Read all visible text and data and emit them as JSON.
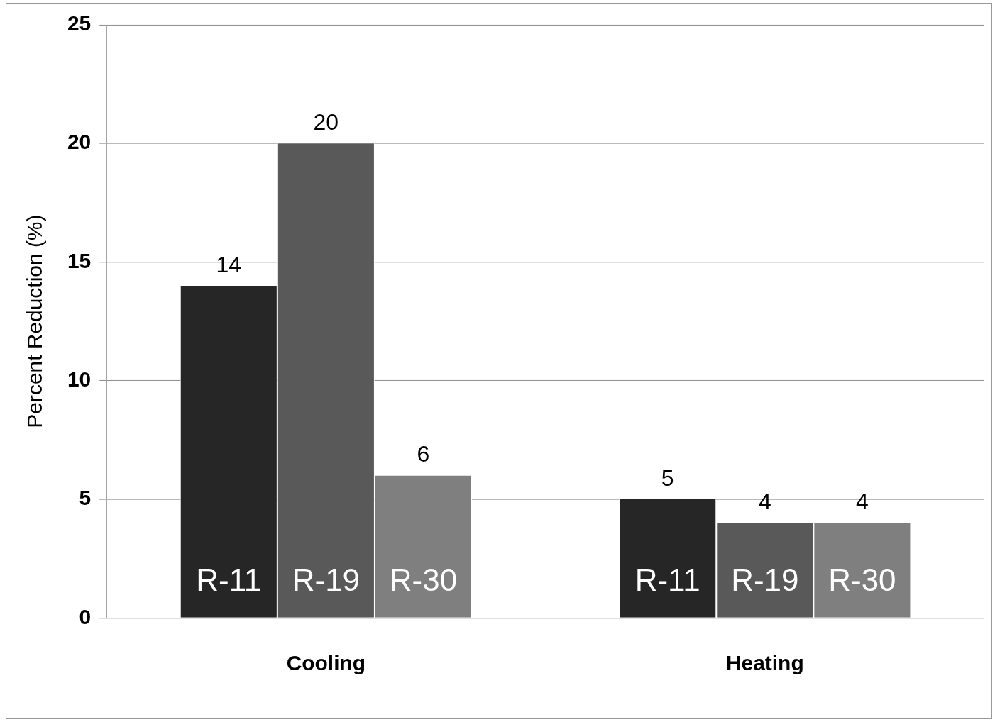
{
  "chart_data": {
    "type": "bar",
    "ylabel": "Percent Reduction (%)",
    "categories": [
      "Cooling",
      "Heating"
    ],
    "series": [
      {
        "name": "R-11",
        "color": "#262626",
        "values": [
          14,
          5
        ]
      },
      {
        "name": "R-19",
        "color": "#595959",
        "values": [
          20,
          4
        ]
      },
      {
        "name": "R-30",
        "color": "#7f7f7f",
        "values": [
          6,
          4
        ]
      }
    ],
    "ylim": [
      0,
      25
    ],
    "yticks": [
      0,
      5,
      10,
      15,
      20,
      25
    ],
    "grid": "y",
    "data_labels": true,
    "legend": false
  }
}
